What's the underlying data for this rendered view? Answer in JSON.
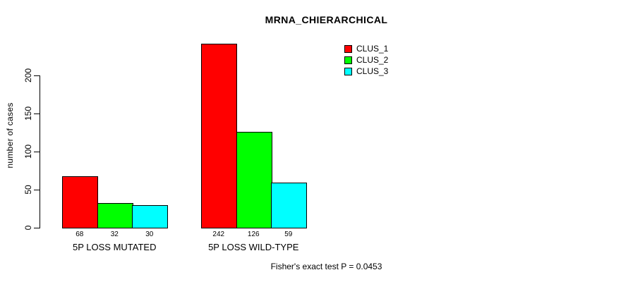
{
  "chart_data": {
    "type": "bar",
    "title": "MRNA_CHIERARCHICAL",
    "ylabel": "number of cases",
    "xlabel": "",
    "categories": [
      "5P LOSS MUTATED",
      "5P LOSS WILD-TYPE"
    ],
    "series": [
      {
        "name": "CLUS_1",
        "color": "#ff0000",
        "values": [
          68,
          242
        ]
      },
      {
        "name": "CLUS_2",
        "color": "#00ff00",
        "values": [
          32,
          126
        ]
      },
      {
        "name": "CLUS_3",
        "color": "#00ffff",
        "values": [
          30,
          59
        ]
      }
    ],
    "yticks": [
      0,
      50,
      100,
      150,
      200
    ],
    "ylim": [
      0,
      245
    ],
    "grid": false,
    "bar_value_labels_shown": true,
    "legend_position": "top-right",
    "bar_border_color": "#000000",
    "annotation": "Fisher's exact test P = 0.0453"
  }
}
